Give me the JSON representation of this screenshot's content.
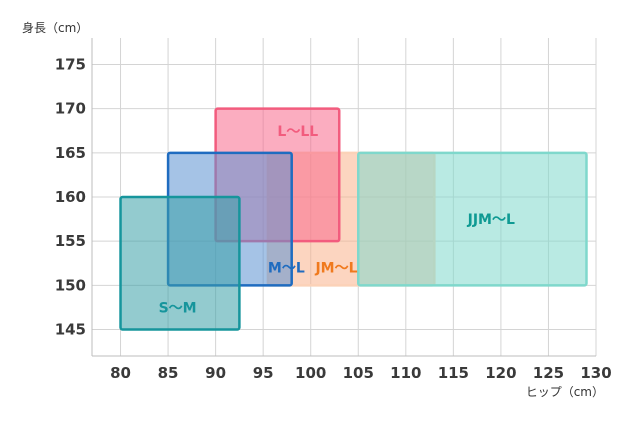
{
  "chart_data": {
    "type": "range-rectangles",
    "ylabel": "身長（cm）",
    "xlabel": "ヒップ（cm）",
    "xlim": [
      77,
      130
    ],
    "ylim": [
      142,
      178
    ],
    "x_ticks": [
      80,
      85,
      90,
      95,
      100,
      105,
      110,
      115,
      120,
      125,
      130
    ],
    "y_ticks": [
      145,
      150,
      155,
      160,
      165,
      170,
      175
    ],
    "grid": true,
    "regions": [
      {
        "label": "JM〜L",
        "hip_range": [
          95.5,
          113
        ],
        "height_range": [
          150,
          165
        ],
        "fill": "#f9b38c",
        "stroke": "#fbd2b8",
        "label_color": "#f07a1e",
        "label_at": [
          100.5,
          152
        ]
      },
      {
        "label": "JJM〜L",
        "hip_range": [
          105,
          129
        ],
        "height_range": [
          150,
          165
        ],
        "fill": "#7fd8cc",
        "stroke": "#7fd8cc",
        "label_color": "#0e9a93",
        "label_at": [
          116.5,
          157.5
        ]
      },
      {
        "label": "L〜LL",
        "hip_range": [
          90,
          103
        ],
        "height_range": [
          155,
          170
        ],
        "fill": "#f76a8c",
        "stroke": "#f25c7e",
        "label_color": "#f25c7e",
        "label_at": [
          96.5,
          167.5
        ]
      },
      {
        "label": "M〜L",
        "hip_range": [
          85,
          98
        ],
        "height_range": [
          150,
          165
        ],
        "fill": "#5b92d2",
        "stroke": "#1f6cc0",
        "label_color": "#1f6cc0",
        "label_at": [
          95.5,
          152
        ]
      },
      {
        "label": "S〜M",
        "hip_range": [
          80,
          92.5
        ],
        "height_range": [
          145,
          160
        ],
        "fill": "#3aa0a7",
        "stroke": "#16959c",
        "label_color": "#16959c",
        "label_at": [
          84,
          147.5
        ]
      }
    ]
  }
}
